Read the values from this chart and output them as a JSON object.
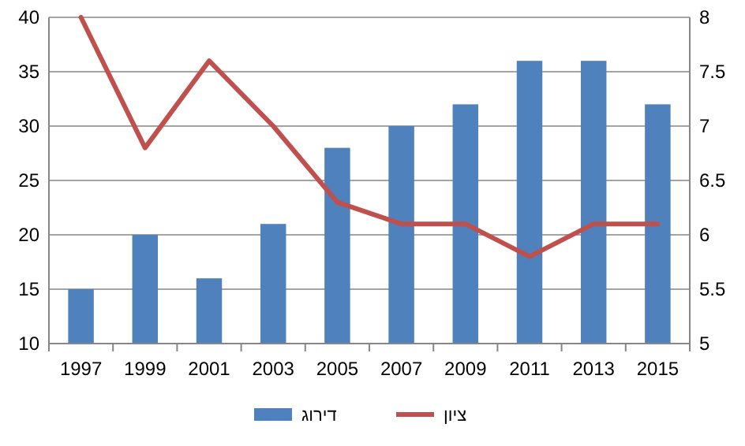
{
  "chart_data": {
    "type": "bar",
    "categories": [
      "1997",
      "1999",
      "2001",
      "2003",
      "2005",
      "2007",
      "2009",
      "2011",
      "2013",
      "2015"
    ],
    "series": [
      {
        "name": "דירוג",
        "color": "#4f81bd",
        "values": [
          15,
          20,
          16,
          21,
          28,
          30,
          32,
          36,
          36,
          32
        ]
      },
      {
        "name": "ציון",
        "type": "line",
        "axis": "y2",
        "color": "#c0504d",
        "values": [
          8,
          6.8,
          7.6,
          7.0,
          6.3,
          6.1,
          6.1,
          5.8,
          6.1,
          6.1
        ]
      }
    ],
    "ylim": [
      10,
      40
    ],
    "yticks": [
      10,
      15,
      20,
      25,
      30,
      35,
      40
    ],
    "y2lim": [
      5,
      8
    ],
    "y2ticks": [
      5,
      5.5,
      6,
      6.5,
      7,
      7.5,
      8
    ],
    "grid": "y",
    "legend": "bottom",
    "marker": "none",
    "line_style": "solid"
  }
}
